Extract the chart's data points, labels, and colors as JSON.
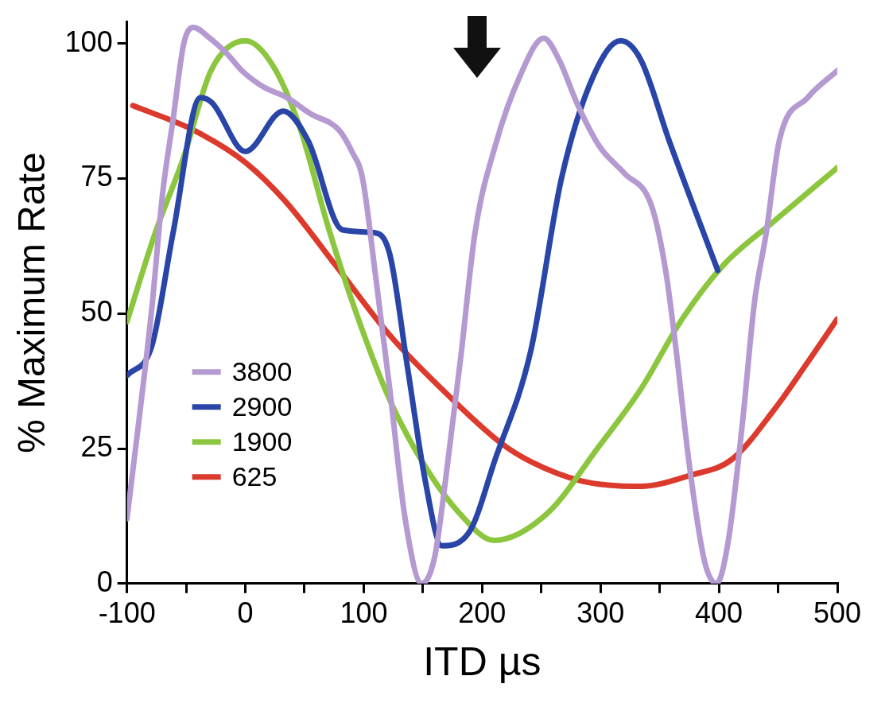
{
  "chart_data": {
    "type": "line",
    "xlabel": "ITD µs",
    "ylabel": "% Maximum Rate",
    "xlim": [
      -100,
      500
    ],
    "ylim": [
      0,
      104
    ],
    "xticks": [
      -100,
      {
        "value": -50,
        "label": null
      },
      0,
      {
        "value": 50,
        "label": null
      },
      100,
      {
        "value": 150,
        "label": null
      },
      200,
      {
        "value": 250,
        "label": null
      },
      300,
      {
        "value": 350,
        "label": null
      },
      400,
      {
        "value": 450,
        "label": null
      },
      500
    ],
    "yticks": [
      0,
      25,
      50,
      75,
      100
    ],
    "grid": false,
    "legend": "bottom left",
    "marker": "none",
    "line_style": "solid",
    "series": [
      {
        "name": "3800",
        "color": "#b49ad0",
        "x": [
          -100,
          -90,
          -79,
          -70,
          -61,
          -52,
          -44,
          -30,
          -15,
          -3,
          15,
          35,
          55,
          79,
          90,
          99,
          110,
          122,
          135,
          149,
          160,
          169,
          182,
          194,
          211,
          232,
          252,
          265,
          280,
          299,
          320,
          343,
          355,
          364,
          375,
          388,
          398,
          408,
          420,
          430,
          440,
          451,
          475,
          500
        ],
        "values": [
          12,
          30,
          51,
          72,
          86,
          100,
          103,
          101,
          98,
          95,
          92,
          90,
          87,
          84,
          80,
          75,
          57,
          36,
          12,
          0,
          5,
          19,
          42,
          65,
          81,
          94,
          101,
          97,
          89,
          81,
          76,
          70,
          58,
          43,
          22,
          4,
          0,
          8,
          30,
          52,
          65,
          82,
          90,
          95
        ]
      },
      {
        "name": "2900",
        "color": "#2a45a8",
        "x": [
          -100,
          -79,
          -61,
          -38,
          -28,
          0,
          32,
          53,
          82,
          108,
          122,
          137,
          152,
          166,
          189,
          211,
          241,
          267,
          294,
          317,
          334,
          358,
          399
        ],
        "values": [
          38.5,
          44,
          65,
          90,
          89,
          80,
          87.5,
          82,
          65.5,
          65,
          61,
          40,
          19,
          7,
          9.5,
          23,
          43,
          75,
          94,
          100.5,
          97,
          82,
          58
        ]
      },
      {
        "name": "1900",
        "color": "#8cc63f",
        "x": [
          -100,
          -76,
          -52,
          -29,
          0,
          23,
          46,
          70,
          93,
          122,
          151,
          181,
          210,
          255,
          299,
          334,
          369,
          404,
          446,
          500
        ],
        "values": [
          48.5,
          65,
          79,
          95,
          100.5,
          96,
          84.5,
          66,
          50.5,
          34,
          22,
          13,
          8,
          13,
          25.5,
          36,
          49,
          59,
          67,
          77
        ]
      },
      {
        "name": "625",
        "color": "#dc3a2c",
        "x": [
          -95,
          -44,
          0,
          35,
          76,
          122,
          166,
          216,
          241,
          284,
          334,
          375,
          411,
          446,
          475,
          500
        ],
        "values": [
          88.5,
          84,
          78,
          70.5,
          59,
          46,
          36,
          26,
          22.6,
          19,
          18,
          20,
          23,
          32,
          41,
          49
        ]
      }
    ]
  }
}
